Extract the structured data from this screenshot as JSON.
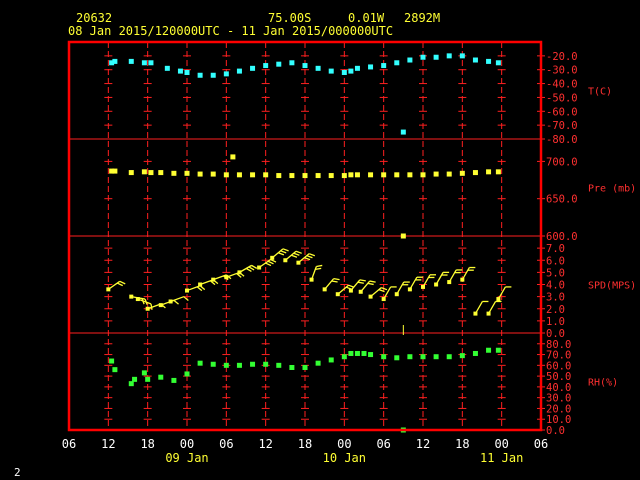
{
  "header": {
    "station": "20632",
    "lat": "75.00S",
    "lon": "0.01W",
    "elev": "2892M",
    "range": "08 Jan 2015/120000UTC - 11 Jan 2015/000000UTC"
  },
  "corner_label": "2",
  "colors": {
    "frame": "#ff0000",
    "grid": "#ff2020",
    "temp": "#33ffff",
    "pres": "#ffff33",
    "wind": "#ffff33",
    "rh": "#33ff33",
    "header": "#ffff33",
    "xaxis": "#ffffff"
  },
  "x_axis": {
    "hours_from_start_range": [
      -6,
      66
    ],
    "ticks": [
      {
        "h": -6,
        "label": "06"
      },
      {
        "h": 0,
        "label": "12"
      },
      {
        "h": 6,
        "label": "18"
      },
      {
        "h": 12,
        "label": "00"
      },
      {
        "h": 18,
        "label": "06"
      },
      {
        "h": 24,
        "label": "12"
      },
      {
        "h": 30,
        "label": "18"
      },
      {
        "h": 36,
        "label": "00"
      },
      {
        "h": 42,
        "label": "06"
      },
      {
        "h": 48,
        "label": "12"
      },
      {
        "h": 54,
        "label": "18"
      },
      {
        "h": 60,
        "label": "00"
      },
      {
        "h": 66,
        "label": "06"
      }
    ],
    "dates": [
      {
        "h": 12,
        "label": "09 Jan"
      },
      {
        "h": 36,
        "label": "10 Jan"
      },
      {
        "h": 60,
        "label": "11 Jan"
      }
    ]
  },
  "chart_data": [
    {
      "type": "scatter",
      "name": "temperature",
      "title": "T(C)",
      "ylim": [
        -80,
        -10
      ],
      "yticks": [
        "-20.0",
        "-30.0",
        "-40.0",
        "-50.0",
        "-60.0",
        "-70.0",
        "-80.0"
      ],
      "ytick_values": [
        -20,
        -30,
        -40,
        -50,
        -60,
        -70,
        -80
      ],
      "points": [
        [
          0.5,
          -25
        ],
        [
          1,
          -24
        ],
        [
          3.5,
          -24
        ],
        [
          5.5,
          -25
        ],
        [
          6.5,
          -25
        ],
        [
          9,
          -29
        ],
        [
          11,
          -31
        ],
        [
          12,
          -32
        ],
        [
          14,
          -34
        ],
        [
          16,
          -34
        ],
        [
          18,
          -33
        ],
        [
          20,
          -31
        ],
        [
          22,
          -29
        ],
        [
          24,
          -27
        ],
        [
          26,
          -26
        ],
        [
          28,
          -25
        ],
        [
          30,
          -27
        ],
        [
          32,
          -29
        ],
        [
          34,
          -31
        ],
        [
          36,
          -32
        ],
        [
          37,
          -31
        ],
        [
          38,
          -29
        ],
        [
          40,
          -28
        ],
        [
          42,
          -27
        ],
        [
          44,
          -25
        ],
        [
          46,
          -23
        ],
        [
          48,
          -21
        ],
        [
          50,
          -21
        ],
        [
          52,
          -20
        ],
        [
          54,
          -20
        ],
        [
          56,
          -23
        ],
        [
          58,
          -24
        ],
        [
          59.5,
          -25
        ],
        [
          45,
          -75
        ]
      ]
    },
    {
      "type": "scatter",
      "name": "pressure",
      "title": "Pre (mb)",
      "ylim": [
        600,
        730
      ],
      "yticks": [
        "700.0",
        "650.0",
        "600.0"
      ],
      "ytick_values": [
        700,
        650,
        600
      ],
      "points": [
        [
          0.5,
          687
        ],
        [
          1,
          687
        ],
        [
          3.5,
          685
        ],
        [
          5.5,
          686
        ],
        [
          6.5,
          685
        ],
        [
          8,
          685
        ],
        [
          10,
          684
        ],
        [
          12,
          684
        ],
        [
          14,
          683
        ],
        [
          16,
          683
        ],
        [
          18,
          682
        ],
        [
          19,
          706
        ],
        [
          20,
          682
        ],
        [
          22,
          682
        ],
        [
          24,
          682
        ],
        [
          26,
          681
        ],
        [
          28,
          681
        ],
        [
          30,
          681
        ],
        [
          32,
          681
        ],
        [
          34,
          681
        ],
        [
          36,
          681
        ],
        [
          37,
          682
        ],
        [
          38,
          682
        ],
        [
          40,
          682
        ],
        [
          42,
          682
        ],
        [
          44,
          682
        ],
        [
          46,
          682
        ],
        [
          48,
          682
        ],
        [
          50,
          683
        ],
        [
          52,
          683
        ],
        [
          54,
          684
        ],
        [
          56,
          685
        ],
        [
          58,
          686
        ],
        [
          59.5,
          686
        ],
        [
          45,
          600
        ]
      ]
    },
    {
      "type": "barbs",
      "name": "wind",
      "title": "SPD(MPS)",
      "ylim": [
        0,
        8
      ],
      "yticks": [
        "7.0",
        "6.0",
        "5.0",
        "4.0",
        "3.0",
        "2.0",
        "1.0",
        "0.0"
      ],
      "ytick_values": [
        7,
        6,
        5,
        4,
        3,
        2,
        1,
        0
      ],
      "points": [
        {
          "h": 0,
          "spd": 3.6,
          "dir": 55
        },
        {
          "h": 3.5,
          "spd": 3.0,
          "dir": 100
        },
        {
          "h": 4.5,
          "spd": 2.8,
          "dir": 110
        },
        {
          "h": 6,
          "spd": 2.0,
          "dir": 70
        },
        {
          "h": 8,
          "spd": 2.3,
          "dir": 70
        },
        {
          "h": 9.5,
          "spd": 2.6,
          "dir": 70
        },
        {
          "h": 12,
          "spd": 3.5,
          "dir": 70
        },
        {
          "h": 14,
          "spd": 4.0,
          "dir": 70
        },
        {
          "h": 16,
          "spd": 4.4,
          "dir": 70
        },
        {
          "h": 18,
          "spd": 4.6,
          "dir": 70
        },
        {
          "h": 20,
          "spd": 5.0,
          "dir": 60
        },
        {
          "h": 23,
          "spd": 5.4,
          "dir": 55
        },
        {
          "h": 25,
          "spd": 6.2,
          "dir": 50
        },
        {
          "h": 27,
          "spd": 6.0,
          "dir": 50
        },
        {
          "h": 29,
          "spd": 5.8,
          "dir": 50
        },
        {
          "h": 31,
          "spd": 4.4,
          "dir": 20
        },
        {
          "h": 33,
          "spd": 3.6,
          "dir": 40
        },
        {
          "h": 35,
          "spd": 3.2,
          "dir": 50
        },
        {
          "h": 37,
          "spd": 3.5,
          "dir": 40
        },
        {
          "h": 38.5,
          "spd": 3.4,
          "dir": 40
        },
        {
          "h": 40,
          "spd": 3.0,
          "dir": 50
        },
        {
          "h": 42,
          "spd": 2.8,
          "dir": 30
        },
        {
          "h": 44,
          "spd": 3.2,
          "dir": 30
        },
        {
          "h": 46,
          "spd": 3.6,
          "dir": 30
        },
        {
          "h": 48,
          "spd": 3.8,
          "dir": 30
        },
        {
          "h": 50,
          "spd": 4.0,
          "dir": 30
        },
        {
          "h": 52,
          "spd": 4.2,
          "dir": 30
        },
        {
          "h": 54,
          "spd": 4.4,
          "dir": 30
        },
        {
          "h": 56,
          "spd": 1.6,
          "dir": 30
        },
        {
          "h": 58,
          "spd": 1.6,
          "dir": 30
        },
        {
          "h": 59.5,
          "spd": 2.8,
          "dir": 30
        },
        {
          "h": 45,
          "spd": 0,
          "dir": 0
        }
      ]
    },
    {
      "type": "scatter",
      "name": "humidity",
      "title": "RH(%)",
      "ylim": [
        0,
        90
      ],
      "yticks": [
        "80.0",
        "70.0",
        "60.0",
        "50.0",
        "40.0",
        "30.0",
        "20.0",
        "10.0",
        "0.0"
      ],
      "ytick_values": [
        80,
        70,
        60,
        50,
        40,
        30,
        20,
        10,
        0
      ],
      "points": [
        [
          0.5,
          64
        ],
        [
          1,
          56
        ],
        [
          3.5,
          43
        ],
        [
          4,
          47
        ],
        [
          5.5,
          53
        ],
        [
          6,
          47
        ],
        [
          8,
          49
        ],
        [
          10,
          46
        ],
        [
          12,
          52
        ],
        [
          14,
          62
        ],
        [
          16,
          61
        ],
        [
          18,
          60
        ],
        [
          20,
          60
        ],
        [
          22,
          61
        ],
        [
          24,
          61
        ],
        [
          26,
          60
        ],
        [
          28,
          58
        ],
        [
          30,
          58
        ],
        [
          32,
          62
        ],
        [
          34,
          65
        ],
        [
          36,
          68
        ],
        [
          37,
          71
        ],
        [
          38,
          71
        ],
        [
          39,
          71
        ],
        [
          40,
          70
        ],
        [
          42,
          68
        ],
        [
          44,
          67
        ],
        [
          46,
          68
        ],
        [
          48,
          68
        ],
        [
          50,
          68
        ],
        [
          52,
          68
        ],
        [
          54,
          69
        ],
        [
          56,
          71
        ],
        [
          58,
          74
        ],
        [
          59.5,
          74
        ],
        [
          45,
          0
        ]
      ]
    }
  ]
}
